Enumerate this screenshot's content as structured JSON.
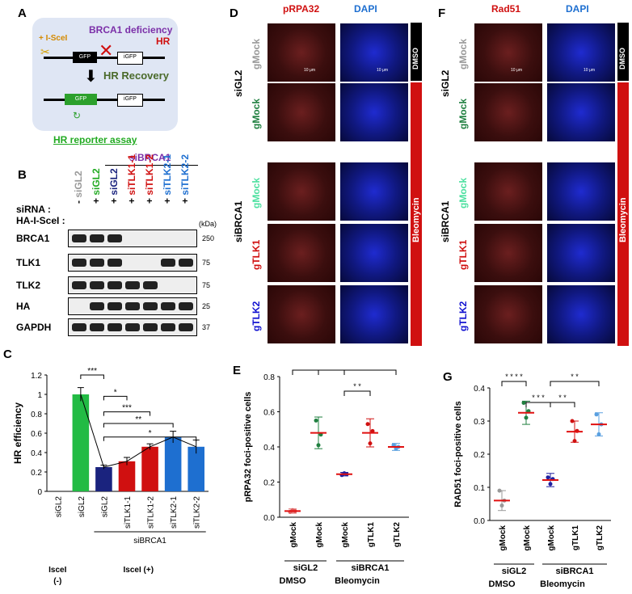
{
  "panels": {
    "A": "A",
    "B": "B",
    "C": "C",
    "D": "D",
    "E": "E",
    "F": "F",
    "G": "G"
  },
  "panel_a": {
    "iscel": "+ I-SceI",
    "deficiency": "BRCA1 deficiency",
    "hr_block": "HR",
    "recovery": "HR Recovery",
    "gfp": "GFP",
    "igfp": "iGFP",
    "caption": "HR reporter assay"
  },
  "panel_b": {
    "sibrca1_header": "siBRCA1",
    "row_sirna": "siRNA :",
    "row_ha": "HA-I-SceI :",
    "lanes": [
      {
        "sign": "-",
        "name": "siGL2",
        "color": "#999999"
      },
      {
        "sign": "+",
        "name": "siGL2",
        "color": "#22aa22"
      },
      {
        "sign": "+",
        "name": "siGL2",
        "color": "#1a237e"
      },
      {
        "sign": "+",
        "name": "siTLK1-1",
        "color": "#d01010"
      },
      {
        "sign": "+",
        "name": "siTLK1-2",
        "color": "#d01010"
      },
      {
        "sign": "+",
        "name": "siTLK2-1",
        "color": "#1e6fd0"
      },
      {
        "sign": "+",
        "name": "siTLK2-2",
        "color": "#1e6fd0"
      }
    ],
    "kda": "(kDa)",
    "blots": [
      {
        "name": "BRCA1",
        "marker": "250"
      },
      {
        "name": "TLK1",
        "marker": "75"
      },
      {
        "name": "TLK2",
        "marker": "75"
      },
      {
        "name": "HA",
        "marker": "25"
      },
      {
        "name": "GAPDH",
        "marker": "37"
      }
    ]
  },
  "panel_d": {
    "col1": "pRPA32",
    "col2": "DAPI",
    "row1": "gMock",
    "row2": "gMock",
    "row3": "gMock",
    "row4": "gTLK1",
    "row5": "gTLK2",
    "group1": "siGL2",
    "group2": "siBRCA1",
    "cond1": "DMSO",
    "cond2": "Bleomycin",
    "scale": "10 μm"
  },
  "panel_f": {
    "col1": "Rad51",
    "col2": "DAPI",
    "row1": "gMock",
    "row2": "gMock",
    "row3": "gMock",
    "row4": "gTLK1",
    "row5": "gTLK2",
    "group1": "siGL2",
    "group2": "siBRCA1",
    "cond1": "DMSO",
    "cond2": "Bleomycin",
    "scale": "10 μm"
  },
  "chart_data": [
    {
      "type": "bar",
      "panel": "C",
      "ylabel": "HR efficiency",
      "ylim": [
        0,
        1.2
      ],
      "yticks": [
        "0",
        "0.2",
        "0.4",
        "0.6",
        "0.8",
        "1",
        "1.2"
      ],
      "categories": [
        "siGL2",
        "siGL2",
        "siGL2",
        "siTLK1-1",
        "siTLK1-2",
        "siTLK2-1",
        "siTLK2-2"
      ],
      "values": [
        0,
        1.0,
        0.25,
        0.31,
        0.46,
        0.56,
        0.46
      ],
      "errors": [
        0,
        0.07,
        0.02,
        0.04,
        0.03,
        0.06,
        0.07
      ],
      "colors": [
        "#ffffff",
        "#22bb44",
        "#1a237e",
        "#d01010",
        "#d01010",
        "#1e6fd0",
        "#1e6fd0"
      ],
      "group_sibrca1": "siBRCA1",
      "iscel_neg": "IsceI",
      "iscel_neg_sign": "(-)",
      "iscel_pos": "IsceI (+)",
      "sig": [
        {
          "from": 1,
          "to": 2,
          "label": "***"
        },
        {
          "from": 2,
          "to": 3,
          "label": "*"
        },
        {
          "from": 2,
          "to": 4,
          "label": "***"
        },
        {
          "from": 2,
          "to": 5,
          "label": "**"
        },
        {
          "from": 2,
          "to": 6,
          "label": "*"
        }
      ]
    },
    {
      "type": "scatter",
      "panel": "E",
      "ylabel": "pRPA32 foci-positive cells",
      "ylim": [
        0,
        0.8
      ],
      "yticks": [
        "0.0",
        "0.2",
        "0.4",
        "0.6",
        "0.8"
      ],
      "categories": [
        "gMock",
        "gMock",
        "gMock",
        "gTLK1",
        "gTLK2"
      ],
      "means": [
        0.035,
        0.48,
        0.245,
        0.48,
        0.4
      ],
      "sd": [
        0.012,
        0.09,
        0.01,
        0.08,
        0.02
      ],
      "points": [
        [
          0.03,
          0.04,
          0.035
        ],
        [
          0.55,
          0.41,
          0.47
        ],
        [
          0.24,
          0.25,
          0.245
        ],
        [
          0.53,
          0.42,
          0.49
        ],
        [
          0.41,
          0.39,
          0.4
        ]
      ],
      "colors": [
        "#e06060",
        "#208040",
        "#2020a0",
        "#d01010",
        "#5aa0e0"
      ],
      "group1": "siGL2",
      "group2": "siBRCA1",
      "cond1": "DMSO",
      "cond2": "Bleomycin",
      "sig": [
        {
          "from": 0,
          "to": 1,
          "label": "* * * *",
          "level": 0
        },
        {
          "from": 1,
          "to": 2,
          "label": "* *",
          "level": 0
        },
        {
          "from": 2,
          "to": 4,
          "label": "*",
          "level": 0
        },
        {
          "from": 2,
          "to": 3,
          "label": "* *",
          "level": 1
        }
      ]
    },
    {
      "type": "scatter",
      "panel": "G",
      "ylabel": "RAD51 foci-positive cells",
      "ylim": [
        0,
        0.4
      ],
      "yticks": [
        "0.0",
        "0.1",
        "0.2",
        "0.3",
        "0.4"
      ],
      "categories": [
        "gMock",
        "gMock",
        "gMock",
        "gTLK1",
        "gTLK2"
      ],
      "means": [
        0.06,
        0.325,
        0.122,
        0.268,
        0.29
      ],
      "sd": [
        0.03,
        0.035,
        0.02,
        0.032,
        0.035
      ],
      "points": [
        [
          0.09,
          0.045,
          0.06
        ],
        [
          0.355,
          0.31,
          0.33
        ],
        [
          0.13,
          0.11,
          0.125
        ],
        [
          0.3,
          0.24,
          0.27
        ],
        [
          0.32,
          0.26,
          0.29
        ]
      ],
      "colors": [
        "#999999",
        "#208040",
        "#2020a0",
        "#d01010",
        "#5aa0e0"
      ],
      "group1": "siGL2",
      "group2": "siBRCA1",
      "cond1": "DMSO",
      "cond2": "Bleomycin",
      "sig": [
        {
          "from": 0,
          "to": 1,
          "label": "* * * *",
          "level": 0
        },
        {
          "from": 2,
          "to": 4,
          "label": "* *",
          "level": 0
        },
        {
          "from": 1,
          "to": 2,
          "label": "* * *",
          "level": 1
        },
        {
          "from": 2,
          "to": 3,
          "label": "* *",
          "level": 1
        }
      ]
    }
  ]
}
